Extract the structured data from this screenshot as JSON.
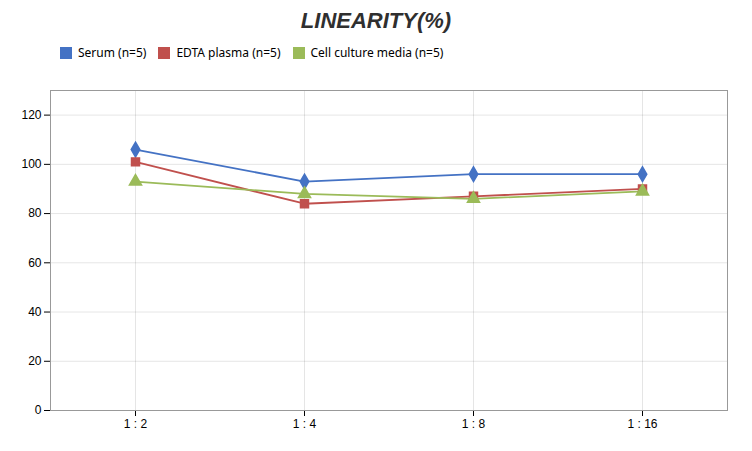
{
  "chart_data": {
    "type": "line",
    "title": "LINEARITY(%)",
    "categories": [
      "1 : 2",
      "1 : 4",
      "1 : 8",
      "1 : 16"
    ],
    "series": [
      {
        "name": "Serum (n=5)",
        "color": "#4472C4",
        "marker": "diamond",
        "values": [
          106,
          93,
          96,
          96
        ]
      },
      {
        "name": "EDTA plasma (n=5)",
        "color": "#C0504D",
        "marker": "square",
        "values": [
          101,
          84,
          87,
          90
        ]
      },
      {
        "name": "Cell culture media (n=5)",
        "color": "#9BBB59",
        "marker": "triangle",
        "values": [
          93,
          88,
          86,
          89
        ]
      }
    ],
    "ylim": [
      0,
      130
    ],
    "yticks": [
      0,
      20,
      40,
      60,
      80,
      100,
      120
    ],
    "grid": true,
    "legend": "top"
  }
}
